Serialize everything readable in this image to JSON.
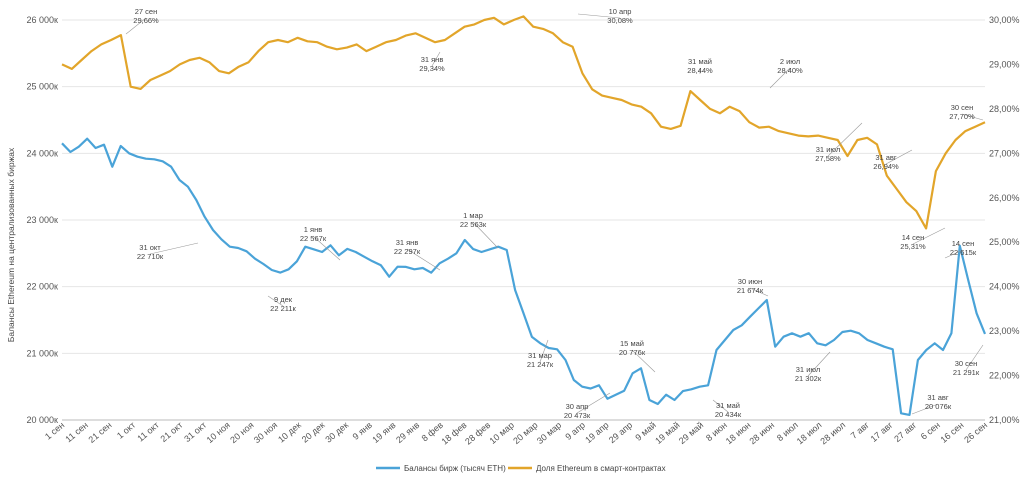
{
  "chart_data": {
    "type": "line",
    "title": "",
    "ylabel": "Балансы Ethereum на централизованных биржах",
    "y2label": "",
    "ylim": [
      20000,
      26000
    ],
    "y2lim": [
      21,
      30
    ],
    "y_ticks": [
      "20 000к",
      "21 000к",
      "22 000к",
      "23 000к",
      "24 000к",
      "25 000к",
      "26 000к"
    ],
    "y2_ticks": [
      "21,00%",
      "22,00%",
      "23,00%",
      "24,00%",
      "25,00%",
      "26,00%",
      "27,00%",
      "28,00%",
      "29,00%",
      "30,00%"
    ],
    "x_ticks": [
      "1 сен",
      "11 сен",
      "21 сен",
      "1 окт",
      "11 окт",
      "21 окт",
      "31 окт",
      "10 ноя",
      "20 ноя",
      "30 ноя",
      "10 дек",
      "20 дек",
      "30 дек",
      "9 янв",
      "19 янв",
      "29 янв",
      "8 фев",
      "18 фев",
      "28 фев",
      "10 мар",
      "20 мар",
      "30 мар",
      "9 апр",
      "19 апр",
      "29 апр",
      "9 май",
      "19 май",
      "29 май",
      "8 июн",
      "18 июн",
      "28 июн",
      "8 июл",
      "18 июл",
      "28 июл",
      "7 авг",
      "17 авг",
      "27 авг",
      "6 сен",
      "16 сен",
      "26 сен"
    ],
    "series": [
      {
        "name": "Балансы бирж (тысяч ETH)",
        "axis": "left",
        "color": "#4aa3d8",
        "values": [
          24150,
          24020,
          24100,
          24220,
          24080,
          24130,
          23800,
          24110,
          24000,
          23950,
          23920,
          23910,
          23880,
          23800,
          23600,
          23500,
          23300,
          23050,
          22850,
          22710,
          22600,
          22580,
          22530,
          22420,
          22340,
          22250,
          22211,
          22260,
          22380,
          22600,
          22560,
          22520,
          22620,
          22470,
          22567,
          22520,
          22450,
          22380,
          22320,
          22150,
          22300,
          22297,
          22260,
          22280,
          22210,
          22350,
          22420,
          22500,
          22700,
          22563,
          22520,
          22560,
          22600,
          22550,
          21950,
          21600,
          21247,
          21150,
          21080,
          21060,
          20900,
          20600,
          20500,
          20473,
          20520,
          20320,
          20380,
          20440,
          20700,
          20776,
          20300,
          20240,
          20380,
          20300,
          20434,
          20460,
          20500,
          20520,
          21050,
          21200,
          21350,
          21420,
          21550,
          21674,
          21800,
          21100,
          21250,
          21300,
          21250,
          21302,
          21150,
          21120,
          21200,
          21320,
          21340,
          21300,
          21200,
          21150,
          21100,
          21060,
          20100,
          20076,
          20900,
          21050,
          21150,
          21050,
          21300,
          22615,
          22100,
          21600,
          21291
        ]
      },
      {
        "name": "Доля Ethereum в смарт-контрактах",
        "axis": "right",
        "color": "#e2a52a",
        "values": [
          29.0,
          28.9,
          29.1,
          29.3,
          29.45,
          29.55,
          29.66,
          28.5,
          28.45,
          28.65,
          28.75,
          28.85,
          29.0,
          29.1,
          29.15,
          29.05,
          28.85,
          28.8,
          28.95,
          29.05,
          29.3,
          29.5,
          29.55,
          29.5,
          29.6,
          29.52,
          29.5,
          29.4,
          29.34,
          29.38,
          29.45,
          29.3,
          29.4,
          29.5,
          29.55,
          29.65,
          29.7,
          29.6,
          29.5,
          29.55,
          29.7,
          29.85,
          29.9,
          30.0,
          30.05,
          29.9,
          30.0,
          30.08,
          29.85,
          29.8,
          29.7,
          29.5,
          29.4,
          28.8,
          28.44,
          28.3,
          28.25,
          28.2,
          28.1,
          28.05,
          27.9,
          27.6,
          27.55,
          27.62,
          28.4,
          28.2,
          28.0,
          27.9,
          28.05,
          27.95,
          27.7,
          27.58,
          27.6,
          27.5,
          27.45,
          27.4,
          27.38,
          27.4,
          27.35,
          27.3,
          26.94,
          27.3,
          27.35,
          27.2,
          26.5,
          26.2,
          25.9,
          25.7,
          25.31,
          26.6,
          27.0,
          27.3,
          27.5,
          27.6,
          27.7
        ]
      }
    ],
    "annotations": [
      {
        "series": 0,
        "date": "31 окт",
        "value": "22 710к"
      },
      {
        "series": 0,
        "date": "9 дек",
        "value": "22 211к"
      },
      {
        "series": 0,
        "date": "1 янв",
        "value": "22 567к"
      },
      {
        "series": 0,
        "date": "31 янв",
        "value": "22 297к"
      },
      {
        "series": 0,
        "date": "1 мар",
        "value": "22 563к"
      },
      {
        "series": 0,
        "date": "31 мар",
        "value": "21 247к"
      },
      {
        "series": 0,
        "date": "30 апр",
        "value": "20 473к"
      },
      {
        "series": 0,
        "date": "15 май",
        "value": "20 776к"
      },
      {
        "series": 0,
        "date": "31 май",
        "value": "20 434к"
      },
      {
        "series": 0,
        "date": "30 июн",
        "value": "21 674к"
      },
      {
        "series": 0,
        "date": "31 июл",
        "value": "21 302к"
      },
      {
        "series": 0,
        "date": "31 авг",
        "value": "20 076к"
      },
      {
        "series": 0,
        "date": "14 сен",
        "value": "22 615к"
      },
      {
        "series": 0,
        "date": "30 сен",
        "value": "21 291к"
      },
      {
        "series": 1,
        "date": "27 сен",
        "value": "29,66%"
      },
      {
        "series": 1,
        "date": "31 янв",
        "value": "29,34%"
      },
      {
        "series": 1,
        "date": "10 апр",
        "value": "30,08%"
      },
      {
        "series": 1,
        "date": "31 май",
        "value": "28,44%"
      },
      {
        "series": 1,
        "date": "2 июл",
        "value": "28,40%"
      },
      {
        "series": 1,
        "date": "31 июл",
        "value": "27,58%"
      },
      {
        "series": 1,
        "date": "31 авг",
        "value": "26,94%"
      },
      {
        "series": 1,
        "date": "14 сен",
        "value": "25,31%"
      },
      {
        "series": 1,
        "date": "30 сен",
        "value": "27,70%"
      }
    ],
    "legend_position": "bottom"
  }
}
